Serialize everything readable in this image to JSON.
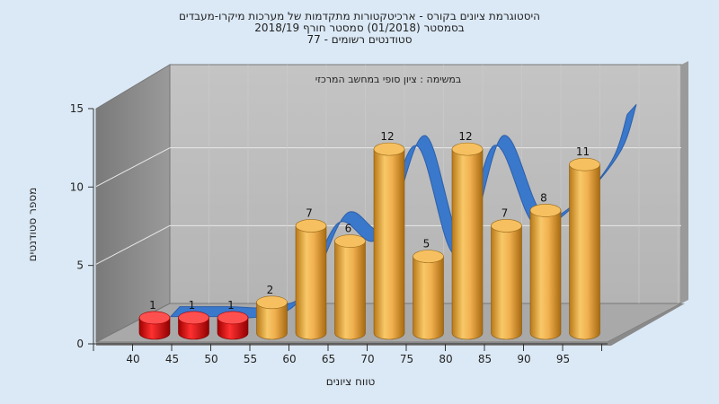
{
  "chart_data": {
    "type": "bar",
    "title_lines": [
      "היסטוגרמת ציונים בקורס - ארכיטקטורות מתקדמות של מערכות מיקרו-מעבדים",
      "בסמסטר  (01/2018)  סמסטר חורף  2018/19",
      "סטודנטים רשומים - 77"
    ],
    "subtitle": "במשימה : ציון סופי במחשב המרכזי",
    "xlabel": "טווח ציונים",
    "ylabel": "מספר סטודנטים",
    "ylim": [
      0,
      15
    ],
    "yticks": [
      "0",
      "5",
      "10",
      "15"
    ],
    "categories": [
      "40",
      "45",
      "50",
      "55",
      "60",
      "65",
      "70",
      "75",
      "80",
      "85",
      "90",
      "95"
    ],
    "values": [
      1,
      1,
      1,
      2,
      7,
      6,
      12,
      5,
      12,
      7,
      8,
      11
    ],
    "failing_bins": 3,
    "grid": true,
    "colors": {
      "fail_bar": "#e02020",
      "pass_bar": "#f2b050",
      "curve": "#3a78cc",
      "wall": "#bcbcbc",
      "side_wall": "#8e8e8e",
      "floor": "#a8a8a8",
      "background": "#dbe9f6"
    }
  }
}
